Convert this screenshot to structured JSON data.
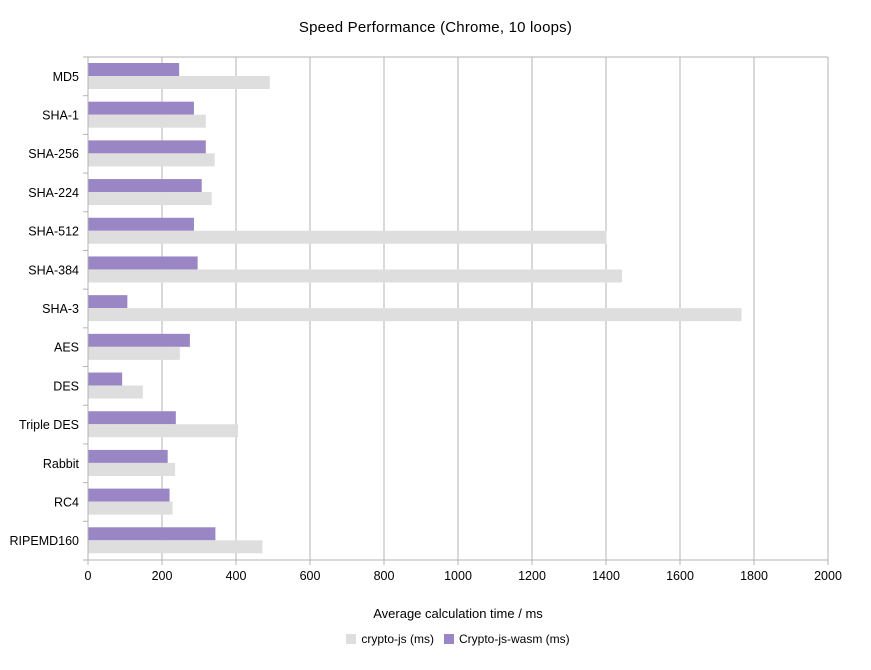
{
  "chart_data": {
    "type": "bar",
    "orientation": "horizontal",
    "title": "Speed Performance (Chrome, 10 loops)",
    "xlabel": "Average calculation time / ms",
    "ylabel": "",
    "categories": [
      "MD5",
      "SHA-1",
      "SHA-256",
      "SHA-224",
      "SHA-512",
      "SHA-384",
      "SHA-3",
      "AES",
      "DES",
      "Triple DES",
      "Rabbit",
      "RC4",
      "RIPEMD160"
    ],
    "series": [
      {
        "name": "crypto-js (ms)",
        "color": "#dedede",
        "values": [
          490,
          317,
          341,
          333,
          1400,
          1442,
          1765,
          247,
          147,
          404,
          234,
          227,
          470
        ]
      },
      {
        "name": "Crypto-js-wasm (ms)",
        "color": "#9a86c4",
        "values": [
          245,
          285,
          317,
          306,
          285,
          295,
          105,
          274,
          91,
          236,
          214,
          219,
          343
        ]
      }
    ],
    "xlim": [
      0,
      2000
    ],
    "xticks": [
      0,
      200,
      400,
      600,
      800,
      1000,
      1200,
      1400,
      1600,
      1800,
      2000
    ],
    "grid": true,
    "legend_position": "bottom"
  },
  "colors": {
    "axis": "#b3b3b3",
    "grid": "#b3b3b3",
    "text": "#000000",
    "background": "#ffffff"
  }
}
